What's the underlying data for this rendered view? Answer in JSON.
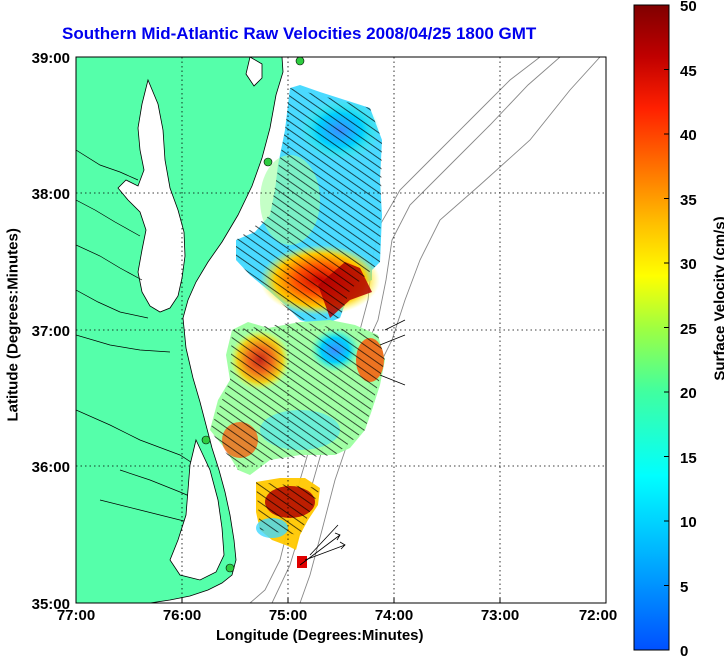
{
  "title": "Southern Mid-Atlantic Raw Velocities 2008/04/25 1800 GMT",
  "xaxis": {
    "label": "Longitude (Degrees:Minutes)",
    "ticks": [
      "77:00",
      "76:00",
      "75:00",
      "74:00",
      "73:00",
      "72:00"
    ]
  },
  "yaxis": {
    "label": "Latitude (Degrees:Minutes)",
    "ticks": [
      "39:00",
      "38:00",
      "37:00",
      "36:00",
      "35:00"
    ]
  },
  "colorbar": {
    "label": "Surface Velocity (cm/s)",
    "ticks": [
      "50",
      "45",
      "40",
      "35",
      "30",
      "25",
      "20",
      "15",
      "10",
      "5",
      "0"
    ],
    "colors": [
      "#0000c8",
      "#0064ff",
      "#00c8ff",
      "#32ffc8",
      "#96ff64",
      "#ffff00",
      "#ffb400",
      "#ff5000",
      "#dc0000",
      "#820000"
    ]
  },
  "map": {
    "land_color": "#55ffaa",
    "water_color": "#ffffff",
    "station_color": "#2ecc40"
  }
}
